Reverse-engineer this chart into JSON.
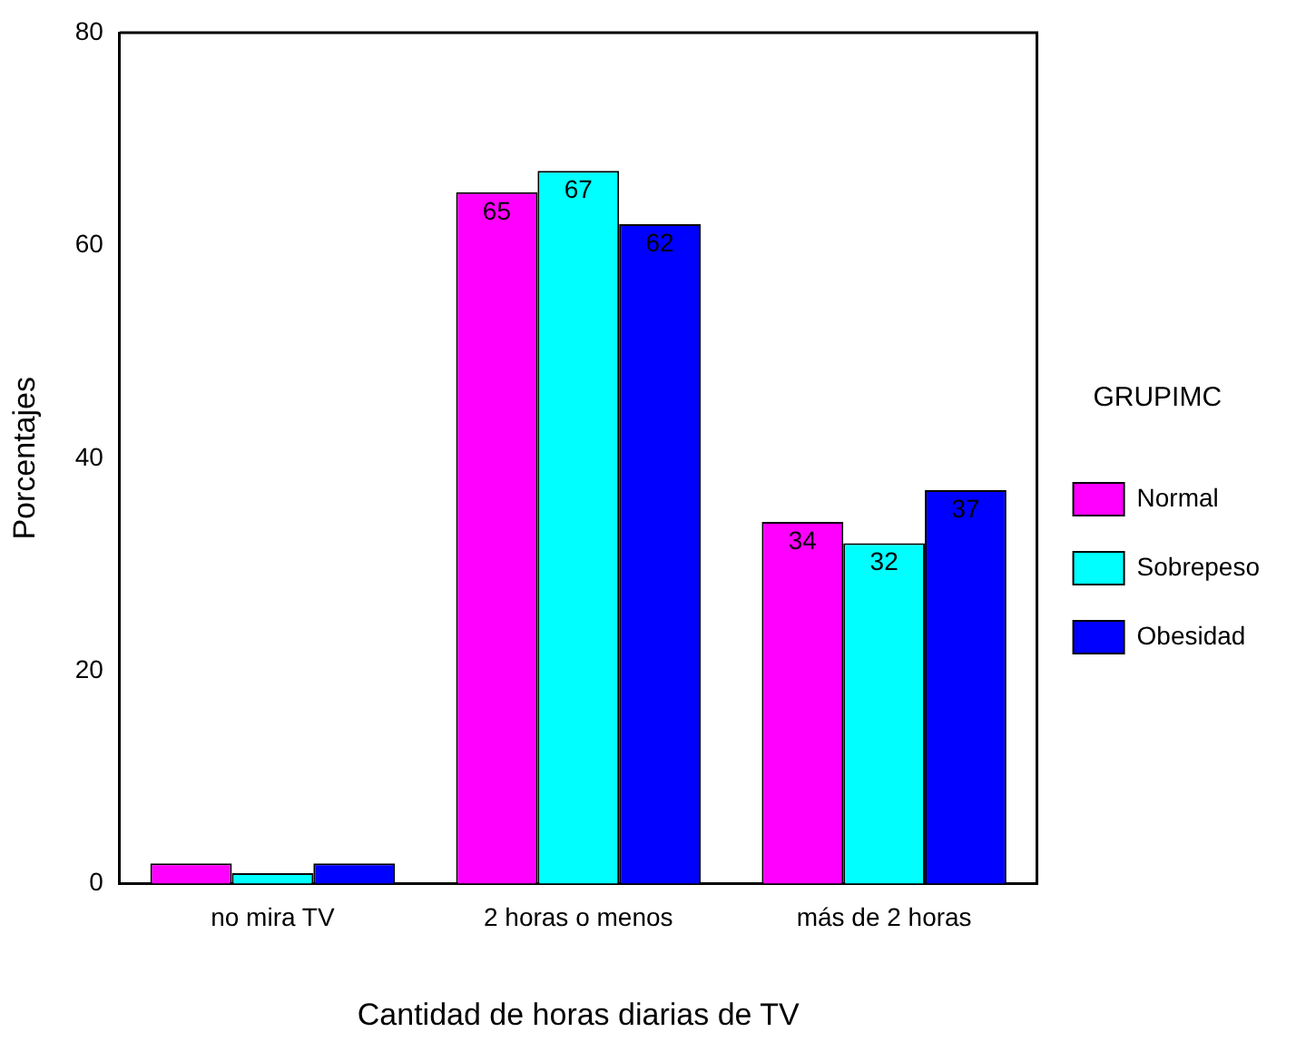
{
  "chart_data": {
    "type": "bar",
    "xlabel": "Cantidad de horas diarias de TV",
    "ylabel": "Porcentajes",
    "legend_title": "GRUPIMC",
    "legend": "right",
    "categories": [
      "no mira TV",
      "2 horas o menos",
      "más de 2 horas"
    ],
    "series": [
      {
        "name": "Normal",
        "color": "#ff00ff",
        "values": [
          1.9,
          65,
          34
        ],
        "value_labels": [
          null,
          "65",
          "34"
        ]
      },
      {
        "name": "Sobrepeso",
        "color": "#00ffff",
        "values": [
          1.0,
          67,
          32
        ],
        "value_labels": [
          null,
          "67",
          "32"
        ]
      },
      {
        "name": "Obesidad",
        "color": "#0000ff",
        "values": [
          1.9,
          62,
          37
        ],
        "value_labels": [
          null,
          "62",
          "37"
        ]
      }
    ],
    "ylim": [
      0,
      80
    ],
    "yticks": [
      0,
      20,
      40,
      60,
      80
    ],
    "grid": false
  }
}
